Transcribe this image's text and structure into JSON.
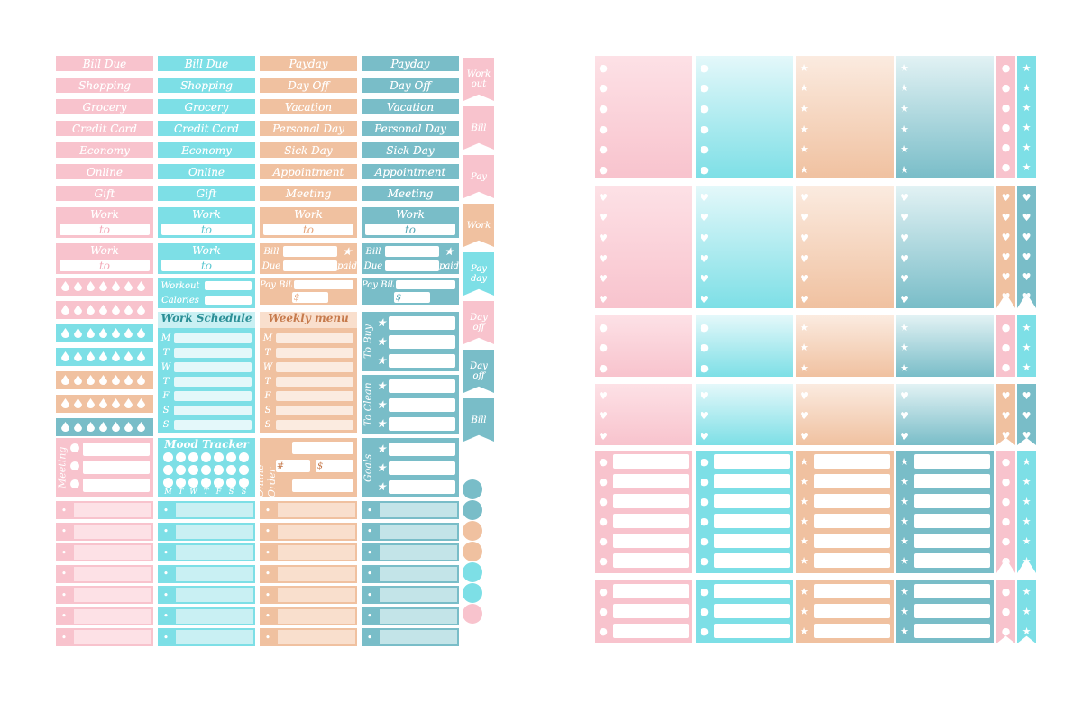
{
  "colors": {
    "pink": "#f8c3cd",
    "blue": "#7ddfe6",
    "peach": "#f0c1a0",
    "teal": "#79bdc8"
  },
  "left_sheet": {
    "pink_labels": [
      "Bill Due",
      "Shopping",
      "Grocery",
      "Credit Card",
      "Economy",
      "Online",
      "Gift"
    ],
    "blue_labels": [
      "Bill Due",
      "Shopping",
      "Grocery",
      "Credit Card",
      "Economy",
      "Online",
      "Gift"
    ],
    "peach_labels": [
      "Payday",
      "Day Off",
      "Vacation",
      "Personal Day",
      "Sick Day",
      "Appointment",
      "Meeting"
    ],
    "teal_labels": [
      "Payday",
      "Day Off",
      "Vacation",
      "Personal Day",
      "Sick Day",
      "Appointment",
      "Meeting"
    ],
    "work": "Work",
    "to": "to",
    "bill": "Bill",
    "due": "Due",
    "paid": "paid",
    "pay_bill": "Pay Bill",
    "dollar": "$",
    "workout": "Workout",
    "calories": "Calories",
    "work_schedule": "Work Schedule",
    "weekly_menu": "Weekly menu",
    "days": [
      "M",
      "T",
      "W",
      "T",
      "F",
      "S",
      "S"
    ],
    "to_buy": "To Buy",
    "to_clean": "To Clean",
    "goals": "Goals",
    "mood_tracker": "Mood Tracker",
    "meeting": "Meeting",
    "online_order": "Online Order",
    "hash": "#",
    "side_labels": [
      "Work out",
      "Bill",
      "Pay",
      "Work",
      "Pay day",
      "Day off",
      "Day off",
      "Bill"
    ]
  }
}
